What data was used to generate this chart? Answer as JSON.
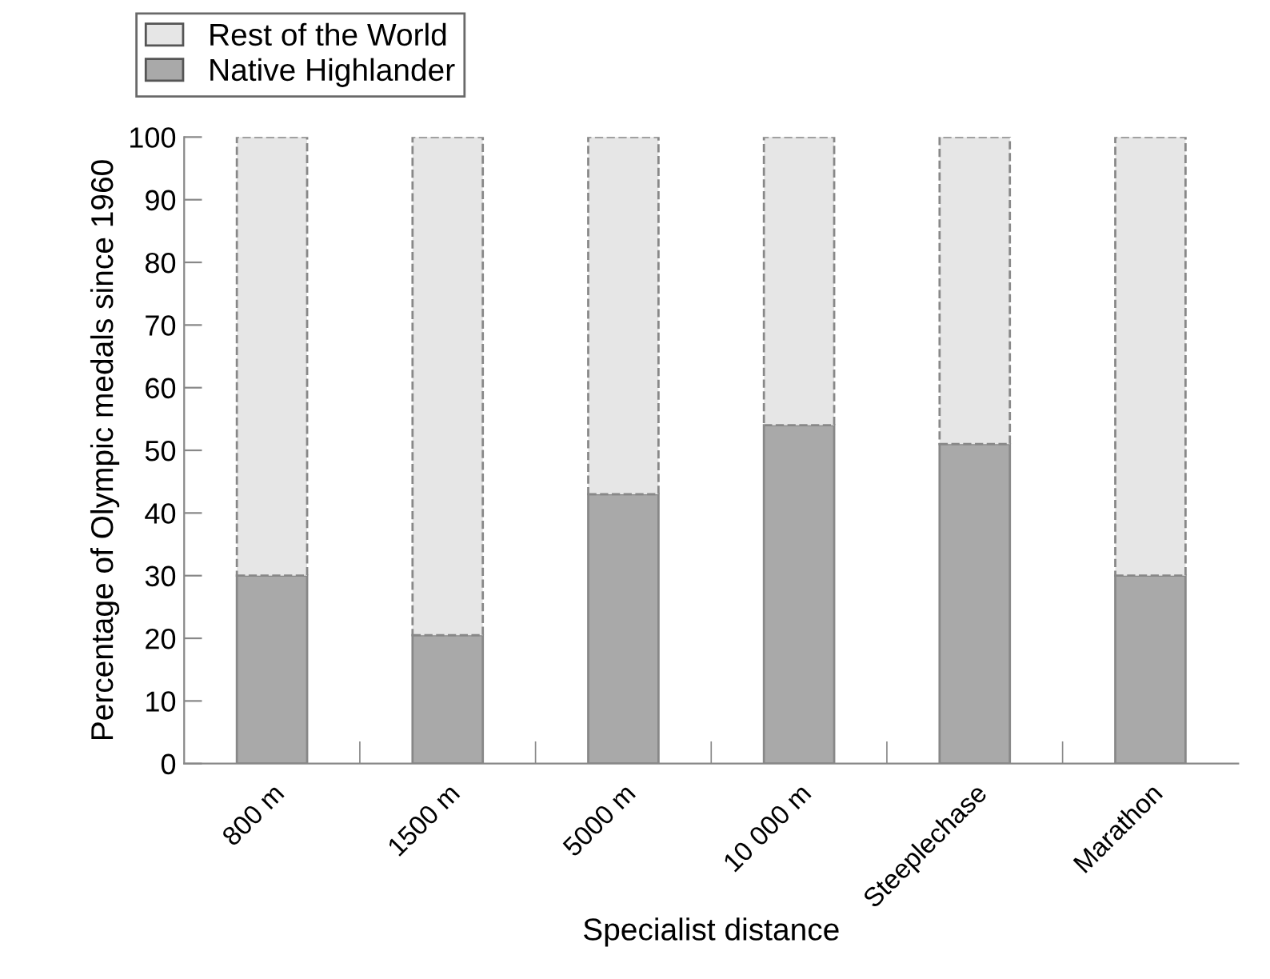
{
  "chart_data": {
    "type": "bar",
    "stacked": true,
    "xlabel": "Specialist distance",
    "ylabel": "Percentage of Olympic medals since 1960",
    "categories": [
      "800 m",
      "1500 m",
      "5000 m",
      "10 000 m",
      "Steeplechase",
      "Marathon"
    ],
    "series": [
      {
        "name": "Native Highlander",
        "color": "#a9a9a9",
        "values": [
          30,
          20.5,
          43,
          54,
          51,
          30
        ]
      },
      {
        "name": "Rest of the World",
        "color": "#e6e6e6",
        "values": [
          70,
          79.5,
          57,
          46,
          49,
          70
        ],
        "line_style": "dashed"
      }
    ],
    "ylim": [
      0,
      100
    ],
    "yticks": [
      0,
      10,
      20,
      30,
      40,
      50,
      60,
      70,
      80,
      90,
      100
    ],
    "grid": false,
    "legend": "top left"
  }
}
